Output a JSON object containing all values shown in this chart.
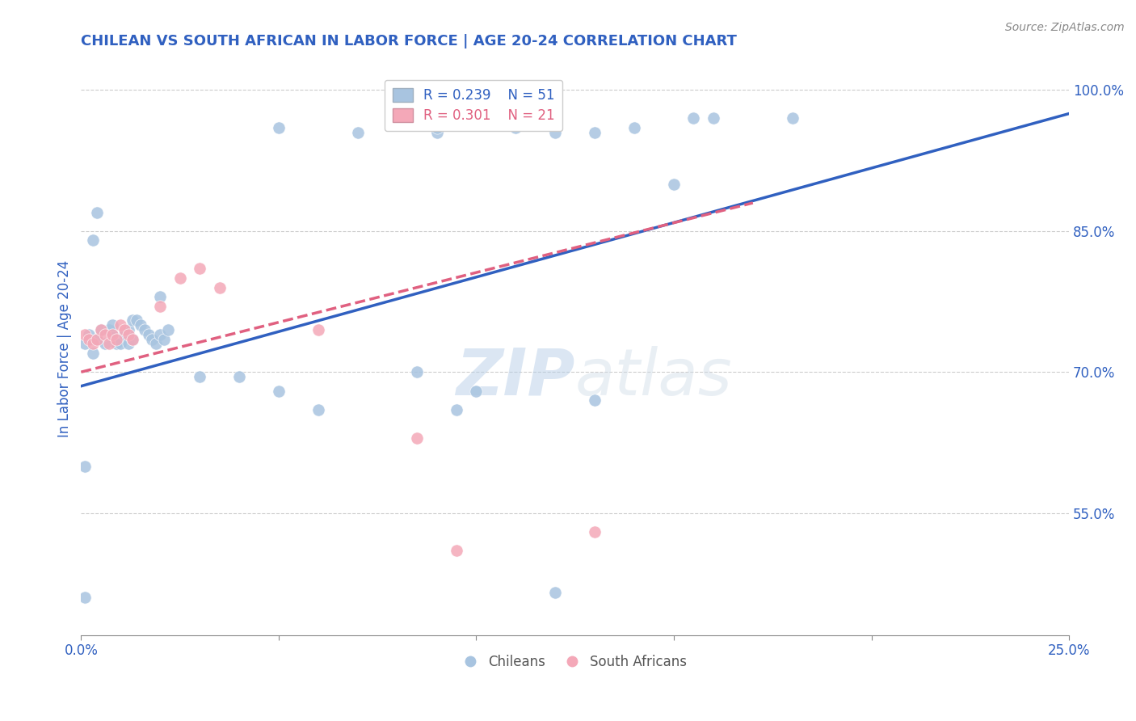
{
  "title": "CHILEAN VS SOUTH AFRICAN IN LABOR FORCE | AGE 20-24 CORRELATION CHART",
  "source": "Source: ZipAtlas.com",
  "ylabel_label": "In Labor Force | Age 20-24",
  "xlim": [
    0.0,
    0.25
  ],
  "ylim": [
    0.42,
    1.03
  ],
  "x_ticks": [
    0.0,
    0.05,
    0.1,
    0.15,
    0.2,
    0.25
  ],
  "x_tick_labels": [
    "0.0%",
    "",
    "",
    "",
    "",
    "25.0%"
  ],
  "y_ticks": [
    0.55,
    0.7,
    0.85,
    1.0
  ],
  "y_tick_labels": [
    "55.0%",
    "70.0%",
    "85.0%",
    "100.0%"
  ],
  "legend_r_blue": "R = 0.239",
  "legend_n_blue": "N = 51",
  "legend_r_pink": "R = 0.301",
  "legend_n_pink": "N = 21",
  "blue_color": "#a8c4e0",
  "pink_color": "#f4a8b8",
  "line_blue": "#3060c0",
  "line_pink": "#e06080",
  "watermark_zip": "ZIP",
  "watermark_atlas": "atlas",
  "blue_scatter_x": [
    0.001,
    0.002,
    0.003,
    0.004,
    0.005,
    0.006,
    0.007,
    0.008,
    0.008,
    0.009,
    0.01,
    0.011,
    0.012,
    0.012,
    0.013,
    0.013,
    0.014,
    0.015,
    0.016,
    0.017,
    0.018,
    0.019,
    0.02,
    0.021,
    0.022,
    0.003,
    0.004,
    0.05,
    0.07,
    0.09,
    0.09,
    0.11,
    0.12,
    0.13,
    0.14,
    0.15,
    0.155,
    0.16,
    0.02,
    0.03,
    0.04,
    0.05,
    0.06,
    0.085,
    0.095,
    0.1,
    0.13,
    0.001,
    0.18,
    0.001,
    0.12
  ],
  "blue_scatter_y": [
    0.73,
    0.74,
    0.72,
    0.735,
    0.745,
    0.73,
    0.745,
    0.74,
    0.75,
    0.73,
    0.73,
    0.74,
    0.745,
    0.73,
    0.735,
    0.755,
    0.755,
    0.75,
    0.745,
    0.74,
    0.735,
    0.73,
    0.74,
    0.735,
    0.745,
    0.84,
    0.87,
    0.96,
    0.955,
    0.955,
    0.96,
    0.96,
    0.955,
    0.955,
    0.96,
    0.9,
    0.97,
    0.97,
    0.78,
    0.695,
    0.695,
    0.68,
    0.66,
    0.7,
    0.66,
    0.68,
    0.67,
    0.6,
    0.97,
    0.46,
    0.465
  ],
  "pink_scatter_x": [
    0.001,
    0.002,
    0.003,
    0.004,
    0.005,
    0.006,
    0.007,
    0.008,
    0.009,
    0.01,
    0.011,
    0.012,
    0.013,
    0.02,
    0.025,
    0.03,
    0.035,
    0.06,
    0.085,
    0.095,
    0.13
  ],
  "pink_scatter_y": [
    0.74,
    0.735,
    0.73,
    0.735,
    0.745,
    0.74,
    0.73,
    0.74,
    0.735,
    0.75,
    0.745,
    0.74,
    0.735,
    0.77,
    0.8,
    0.81,
    0.79,
    0.745,
    0.63,
    0.51,
    0.53
  ],
  "blue_line_x": [
    0.0,
    0.25
  ],
  "blue_line_y": [
    0.685,
    0.975
  ],
  "pink_line_x": [
    0.0,
    0.17
  ],
  "pink_line_y": [
    0.7,
    0.88
  ],
  "grid_color": "#cccccc",
  "title_color": "#3060c0",
  "axis_label_color": "#3060c0",
  "tick_color": "#3060c0"
}
